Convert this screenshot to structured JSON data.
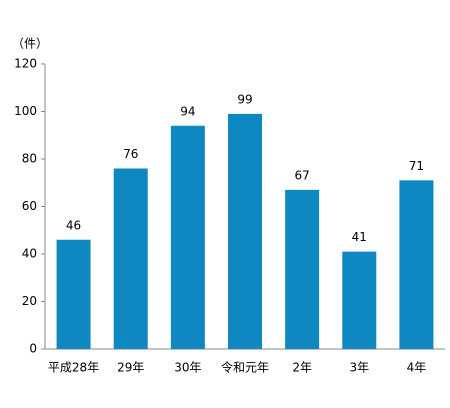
{
  "chart_data": {
    "type": "bar",
    "y_label": "（件）",
    "categories": [
      "平成28年",
      "29年",
      "30年",
      "令和元年",
      "2年",
      "3年",
      "4年"
    ],
    "values": [
      46,
      76,
      94,
      99,
      67,
      41,
      71
    ],
    "color": "#0f87c0",
    "ylim": [
      0,
      120
    ],
    "yticks": [
      0,
      20,
      40,
      60,
      80,
      100,
      120
    ],
    "grid": false
  }
}
